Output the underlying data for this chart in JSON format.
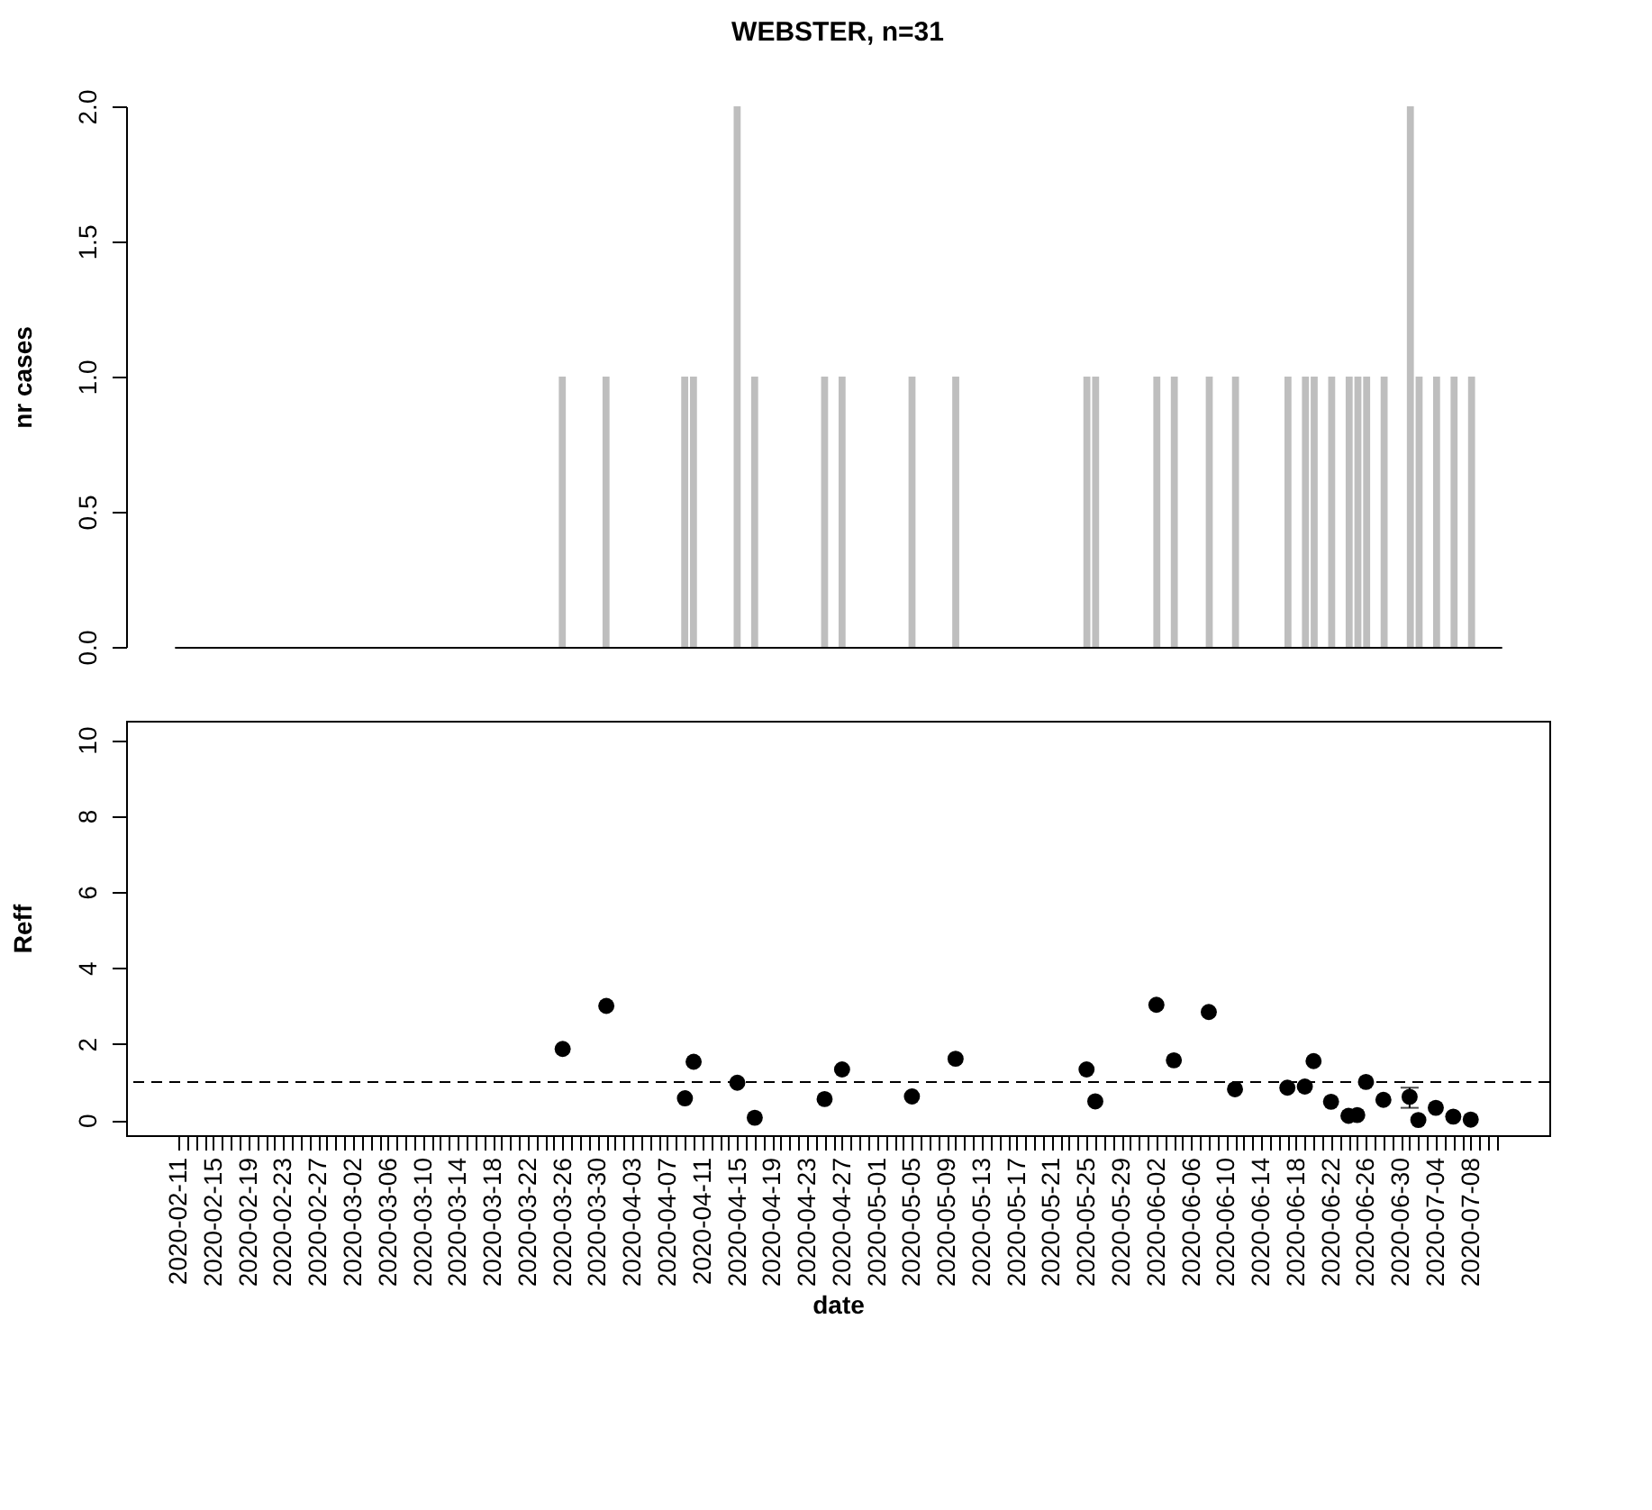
{
  "chart_data": [
    {
      "type": "bar",
      "title": "WEBSTER, n=31",
      "ylabel": "nr cases",
      "color": "#bebebe",
      "categories": [
        null,
        null,
        null,
        null,
        null,
        null,
        null,
        null,
        null,
        null,
        null,
        null,
        null,
        null,
        null,
        null,
        null,
        null,
        null,
        null,
        null,
        null,
        null,
        null,
        null,
        null,
        null,
        null,
        null,
        null,
        null,
        null,
        null,
        null,
        null,
        null,
        null,
        null,
        null,
        null,
        null,
        null,
        null,
        null,
        null,
        null,
        null,
        null,
        null,
        null,
        null,
        null,
        null,
        null,
        null,
        null,
        null,
        null,
        null,
        null,
        null,
        null,
        null,
        null,
        null,
        null,
        null,
        null,
        null,
        null,
        null,
        null,
        null,
        null,
        null,
        null,
        null,
        null,
        null,
        null,
        null,
        null,
        null,
        null,
        null,
        null,
        null,
        null,
        null,
        null,
        null,
        null,
        null,
        null,
        null,
        null,
        null,
        null,
        null,
        null,
        null,
        null,
        null,
        null,
        null,
        null,
        null,
        null,
        null,
        null,
        null,
        null,
        null,
        null,
        null,
        null,
        null,
        null,
        null,
        null,
        null,
        null,
        null,
        null,
        null,
        null,
        null,
        null,
        null,
        null,
        null,
        null,
        null,
        null,
        null,
        null,
        null,
        null,
        null,
        null,
        null,
        null,
        null,
        null,
        null,
        null,
        null,
        null,
        null,
        null,
        null,
        null
      ],
      "values": [
        0,
        0,
        0,
        0,
        0,
        0,
        0,
        0,
        0,
        0,
        0,
        0,
        0,
        0,
        0,
        0,
        0,
        0,
        0,
        0,
        0,
        0,
        0,
        0,
        0,
        0,
        0,
        0,
        0,
        0,
        0,
        0,
        0,
        0,
        0,
        0,
        0,
        0,
        0,
        0,
        0,
        0,
        0,
        0,
        1,
        0,
        0,
        0,
        0,
        1,
        0,
        0,
        0,
        0,
        0,
        0,
        0,
        0,
        1,
        1,
        0,
        0,
        0,
        0,
        2,
        0,
        1,
        0,
        0,
        0,
        0,
        0,
        0,
        0,
        1,
        0,
        1,
        0,
        0,
        0,
        0,
        0,
        0,
        0,
        1,
        0,
        0,
        0,
        0,
        1,
        0,
        0,
        0,
        0,
        0,
        0,
        0,
        0,
        0,
        0,
        0,
        0,
        0,
        0,
        1,
        1,
        0,
        0,
        0,
        0,
        0,
        0,
        1,
        0,
        1,
        0,
        0,
        0,
        1,
        0,
        0,
        1,
        0,
        0,
        0,
        0,
        0,
        1,
        0,
        1,
        1,
        0,
        1,
        0,
        1,
        1,
        1,
        0,
        1,
        0,
        0,
        2,
        1,
        0,
        1,
        0,
        1,
        0,
        1,
        0,
        0,
        0
      ],
      "ylim": [
        0,
        2
      ],
      "yticks": [
        {
          "value": 0,
          "label": "0.0"
        },
        {
          "value": 0.5,
          "label": "0.5"
        },
        {
          "value": 1,
          "label": "1.0"
        },
        {
          "value": 1.5,
          "label": "1.5"
        },
        {
          "value": 2,
          "label": "2.0"
        }
      ],
      "tick_labels": "y",
      "grid": false
    },
    {
      "type": "scatter",
      "ylabel": "Reff",
      "xlabel": "date",
      "color": "#000000",
      "marker": "circle",
      "x": [
        "2020-03-26",
        "2020-03-31",
        "2020-04-09",
        "2020-04-10",
        "2020-04-15",
        "2020-04-17",
        "2020-04-25",
        "2020-04-27",
        "2020-05-05",
        "2020-05-10",
        "2020-05-25",
        "2020-05-26",
        "2020-06-02",
        "2020-06-04",
        "2020-06-08",
        "2020-06-11",
        "2020-06-17",
        "2020-06-19",
        "2020-06-20",
        "2020-06-22",
        "2020-06-24",
        "2020-06-25",
        "2020-06-26",
        "2020-06-28",
        "2020-07-01",
        "2020-07-02",
        "2020-07-04",
        "2020-07-06",
        "2020-07-08"
      ],
      "values": [
        1.87,
        3.0,
        0.57,
        1.53,
        0.98,
        0.06,
        0.55,
        1.33,
        0.62,
        1.61,
        1.33,
        0.49,
        3.03,
        1.57,
        2.84,
        0.81,
        0.85,
        0.88,
        1.55,
        0.48,
        0.11,
        0.13,
        1.0,
        0.53,
        0.61,
        0.0,
        0.32,
        0.09,
        0.01
      ],
      "errors": [
        null,
        null,
        null,
        null,
        null,
        null,
        null,
        null,
        null,
        null,
        null,
        null,
        null,
        null,
        null,
        null,
        null,
        null,
        null,
        null,
        null,
        null,
        null,
        null,
        [
          0.32,
          0.85
        ],
        null,
        null,
        null,
        null
      ],
      "ref_lines": [
        {
          "axis": "y",
          "value": 1,
          "line_style": "dashed",
          "color": "#000000"
        }
      ],
      "xlim": [
        "2020-02-05",
        "2020-07-17"
      ],
      "ylim": [
        -0.4,
        10.5
      ],
      "yticks": [
        0,
        2,
        4,
        6,
        8,
        10
      ],
      "xticks": [
        "2020-02-11",
        {
          "value": "2020-02-12",
          "label": null
        },
        {
          "value": "2020-02-13",
          "label": null
        },
        {
          "value": "2020-02-14",
          "label": null
        },
        "2020-02-15",
        {
          "value": "2020-02-16",
          "label": null
        },
        {
          "value": "2020-02-17",
          "label": null
        },
        {
          "value": "2020-02-18",
          "label": null
        },
        "2020-02-19",
        {
          "value": "2020-02-20",
          "label": null
        },
        {
          "value": "2020-02-21",
          "label": null
        },
        {
          "value": "2020-02-22",
          "label": null
        },
        "2020-02-23",
        {
          "value": "2020-02-24",
          "label": null
        },
        {
          "value": "2020-02-25",
          "label": null
        },
        {
          "value": "2020-02-26",
          "label": null
        },
        "2020-02-27",
        {
          "value": "2020-02-28",
          "label": null
        },
        {
          "value": "2020-02-29",
          "label": null
        },
        {
          "value": "2020-03-01",
          "label": null
        },
        "2020-03-02",
        {
          "value": "2020-03-03",
          "label": null
        },
        {
          "value": "2020-03-04",
          "label": null
        },
        {
          "value": "2020-03-05",
          "label": null
        },
        "2020-03-06",
        {
          "value": "2020-03-07",
          "label": null
        },
        {
          "value": "2020-03-08",
          "label": null
        },
        {
          "value": "2020-03-09",
          "label": null
        },
        "2020-03-10",
        {
          "value": "2020-03-11",
          "label": null
        },
        {
          "value": "2020-03-12",
          "label": null
        },
        {
          "value": "2020-03-13",
          "label": null
        },
        "2020-03-14",
        {
          "value": "2020-03-15",
          "label": null
        },
        {
          "value": "2020-03-16",
          "label": null
        },
        {
          "value": "2020-03-17",
          "label": null
        },
        "2020-03-18",
        {
          "value": "2020-03-19",
          "label": null
        },
        {
          "value": "2020-03-20",
          "label": null
        },
        {
          "value": "2020-03-21",
          "label": null
        },
        "2020-03-22",
        {
          "value": "2020-03-23",
          "label": null
        },
        {
          "value": "2020-03-24",
          "label": null
        },
        {
          "value": "2020-03-25",
          "label": null
        },
        "2020-03-26",
        {
          "value": "2020-03-27",
          "label": null
        },
        {
          "value": "2020-03-28",
          "label": null
        },
        {
          "value": "2020-03-29",
          "label": null
        },
        "2020-03-30",
        {
          "value": "2020-03-31",
          "label": null
        },
        {
          "value": "2020-04-01",
          "label": null
        },
        {
          "value": "2020-04-02",
          "label": null
        },
        "2020-04-03",
        {
          "value": "2020-04-04",
          "label": null
        },
        {
          "value": "2020-04-05",
          "label": null
        },
        {
          "value": "2020-04-06",
          "label": null
        },
        "2020-04-07",
        {
          "value": "2020-04-08",
          "label": null
        },
        {
          "value": "2020-04-09",
          "label": null
        },
        {
          "value": "2020-04-10",
          "label": null
        },
        "2020-04-11",
        {
          "value": "2020-04-12",
          "label": null
        },
        {
          "value": "2020-04-13",
          "label": null
        },
        {
          "value": "2020-04-14",
          "label": null
        },
        "2020-04-15",
        {
          "value": "2020-04-16",
          "label": null
        },
        {
          "value": "2020-04-17",
          "label": null
        },
        {
          "value": "2020-04-18",
          "label": null
        },
        "2020-04-19",
        {
          "value": "2020-04-20",
          "label": null
        },
        {
          "value": "2020-04-21",
          "label": null
        },
        {
          "value": "2020-04-22",
          "label": null
        },
        "2020-04-23",
        {
          "value": "2020-04-24",
          "label": null
        },
        {
          "value": "2020-04-25",
          "label": null
        },
        {
          "value": "2020-04-26",
          "label": null
        },
        "2020-04-27",
        {
          "value": "2020-04-28",
          "label": null
        },
        {
          "value": "2020-04-29",
          "label": null
        },
        {
          "value": "2020-04-30",
          "label": null
        },
        "2020-05-01",
        {
          "value": "2020-05-02",
          "label": null
        },
        {
          "value": "2020-05-03",
          "label": null
        },
        {
          "value": "2020-05-04",
          "label": null
        },
        "2020-05-05",
        {
          "value": "2020-05-06",
          "label": null
        },
        {
          "value": "2020-05-07",
          "label": null
        },
        {
          "value": "2020-05-08",
          "label": null
        },
        "2020-05-09",
        {
          "value": "2020-05-10",
          "label": null
        },
        {
          "value": "2020-05-11",
          "label": null
        },
        {
          "value": "2020-05-12",
          "label": null
        },
        "2020-05-13",
        {
          "value": "2020-05-14",
          "label": null
        },
        {
          "value": "2020-05-15",
          "label": null
        },
        {
          "value": "2020-05-16",
          "label": null
        },
        "2020-05-17",
        {
          "value": "2020-05-18",
          "label": null
        },
        {
          "value": "2020-05-19",
          "label": null
        },
        {
          "value": "2020-05-20",
          "label": null
        },
        "2020-05-21",
        {
          "value": "2020-05-22",
          "label": null
        },
        {
          "value": "2020-05-23",
          "label": null
        },
        {
          "value": "2020-05-24",
          "label": null
        },
        "2020-05-25",
        {
          "value": "2020-05-26",
          "label": null
        },
        {
          "value": "2020-05-27",
          "label": null
        },
        {
          "value": "2020-05-28",
          "label": null
        },
        "2020-05-29",
        {
          "value": "2020-05-30",
          "label": null
        },
        {
          "value": "2020-05-31",
          "label": null
        },
        {
          "value": "2020-06-01",
          "label": null
        },
        "2020-06-02",
        {
          "value": "2020-06-03",
          "label": null
        },
        {
          "value": "2020-06-04",
          "label": null
        },
        {
          "value": "2020-06-05",
          "label": null
        },
        "2020-06-06",
        {
          "value": "2020-06-07",
          "label": null
        },
        {
          "value": "2020-06-08",
          "label": null
        },
        {
          "value": "2020-06-09",
          "label": null
        },
        "2020-06-10",
        {
          "value": "2020-06-11",
          "label": null
        },
        {
          "value": "2020-06-12",
          "label": null
        },
        {
          "value": "2020-06-13",
          "label": null
        },
        "2020-06-14",
        {
          "value": "2020-06-15",
          "label": null
        },
        {
          "value": "2020-06-16",
          "label": null
        },
        {
          "value": "2020-06-17",
          "label": null
        },
        "2020-06-18",
        {
          "value": "2020-06-19",
          "label": null
        },
        {
          "value": "2020-06-20",
          "label": null
        },
        {
          "value": "2020-06-21",
          "label": null
        },
        "2020-06-22",
        {
          "value": "2020-06-23",
          "label": null
        },
        {
          "value": "2020-06-24",
          "label": null
        },
        {
          "value": "2020-06-25",
          "label": null
        },
        "2020-06-26",
        {
          "value": "2020-06-27",
          "label": null
        },
        {
          "value": "2020-06-28",
          "label": null
        },
        {
          "value": "2020-06-29",
          "label": null
        },
        "2020-06-30",
        {
          "value": "2020-07-01",
          "label": null
        },
        {
          "value": "2020-07-02",
          "label": null
        },
        {
          "value": "2020-07-03",
          "label": null
        },
        "2020-07-04",
        {
          "value": "2020-07-05",
          "label": null
        },
        {
          "value": "2020-07-06",
          "label": null
        },
        {
          "value": "2020-07-07",
          "label": null
        },
        "2020-07-08",
        {
          "value": "2020-07-09",
          "label": null
        },
        {
          "value": "2020-07-10",
          "label": null
        },
        {
          "value": "2020-07-11",
          "label": null
        }
      ],
      "grid": false
    }
  ]
}
